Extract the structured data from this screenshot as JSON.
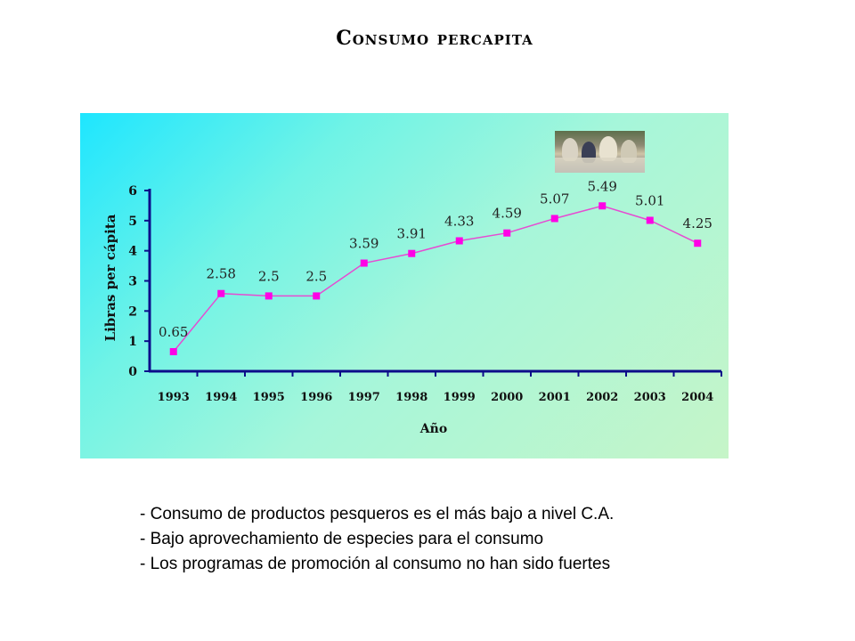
{
  "title": "Consumo percapita",
  "chart_data": {
    "type": "line",
    "xlabel": "Año",
    "ylabel": "Libras per cápita",
    "categories": [
      "1993",
      "1994",
      "1995",
      "1996",
      "1997",
      "1998",
      "1999",
      "2000",
      "2001",
      "2002",
      "2003",
      "2004"
    ],
    "y_ticks": [
      "0",
      "1",
      "2",
      "3",
      "4",
      "5",
      "6"
    ],
    "ylim": [
      0,
      6
    ],
    "series": [
      {
        "values": [
          0.65,
          2.58,
          2.5,
          2.5,
          3.59,
          3.91,
          4.33,
          4.59,
          5.07,
          5.49,
          5.01,
          4.25
        ]
      }
    ],
    "data_labels": [
      "0.65",
      "2.58",
      "2.5",
      "2.5",
      "3.59",
      "3.91",
      "4.33",
      "4.59",
      "5.07",
      "5.49",
      "5.01",
      "4.25"
    ],
    "line_color": "#e64bd2",
    "marker_color": "#ff00e6",
    "background": "gradient cyan to light green",
    "grid": false,
    "legend": "none"
  },
  "photo": {
    "description_icon": "people-eating-photo"
  },
  "bullets": [
    "- Consumo de productos pesqueros es el más bajo a nivel C.A.",
    "- Bajo aprovechamiento de especies para el consumo",
    "- Los programas de promoción al consumo no han sido fuertes"
  ]
}
